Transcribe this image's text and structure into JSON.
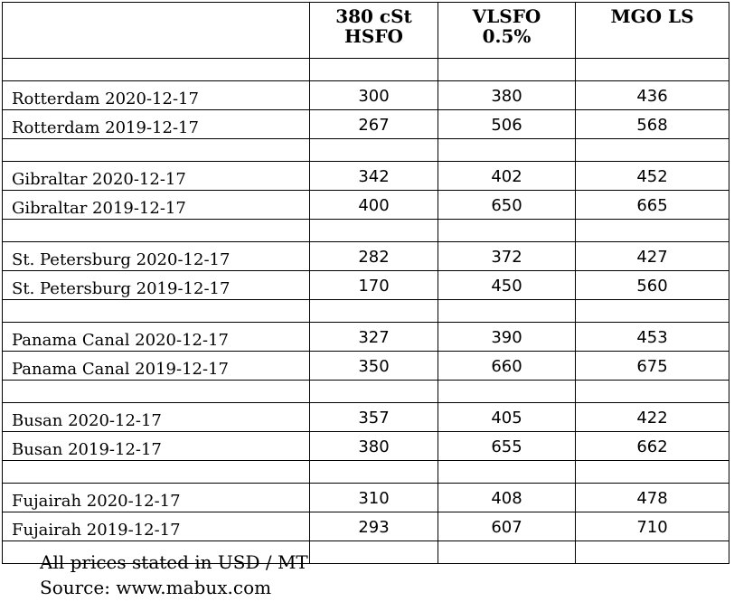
{
  "table": {
    "headers": [
      "",
      "380 cSt\nHSFO",
      "VLSFO\n0.5%",
      "MGO LS"
    ],
    "header_parts": [
      [],
      [
        "380 cSt",
        "HSFO"
      ],
      [
        "VLSFO",
        "0.5%"
      ],
      [
        "MGO LS"
      ]
    ],
    "groups": [
      {
        "rows": [
          {
            "label": "Rotterdam 2020-12-17",
            "values": [
              "300",
              "380",
              "436"
            ]
          },
          {
            "label": "Rotterdam 2019-12-17",
            "values": [
              "267",
              "506",
              "568"
            ]
          }
        ]
      },
      {
        "rows": [
          {
            "label": "Gibraltar 2020-12-17",
            "values": [
              "342",
              "402",
              "452"
            ]
          },
          {
            "label": "Gibraltar 2019-12-17",
            "values": [
              "400",
              "650",
              "665"
            ]
          }
        ]
      },
      {
        "rows": [
          {
            "label": "St. Petersburg 2020-12-17",
            "values": [
              "282",
              "372",
              "427"
            ]
          },
          {
            "label": "St. Petersburg 2019-12-17",
            "values": [
              "170",
              "450",
              "560"
            ]
          }
        ]
      },
      {
        "rows": [
          {
            "label": "Panama Canal 2020-12-17",
            "values": [
              "327",
              "390",
              "453"
            ]
          },
          {
            "label": "Panama Canal 2019-12-17",
            "values": [
              "350",
              "660",
              "675"
            ]
          }
        ]
      },
      {
        "rows": [
          {
            "label": "Busan 2020-12-17",
            "values": [
              "357",
              "405",
              "422"
            ]
          },
          {
            "label": "Busan 2019-12-17",
            "values": [
              "380",
              "655",
              "662"
            ]
          }
        ]
      },
      {
        "rows": [
          {
            "label": "Fujairah 2020-12-17",
            "values": [
              "310",
              "408",
              "478"
            ]
          },
          {
            "label": "Fujairah 2019-12-17",
            "values": [
              "293",
              "607",
              "710"
            ]
          }
        ]
      }
    ]
  },
  "notes": {
    "units": "All prices stated in USD / MT",
    "source": "Source: www.mabux.com"
  }
}
